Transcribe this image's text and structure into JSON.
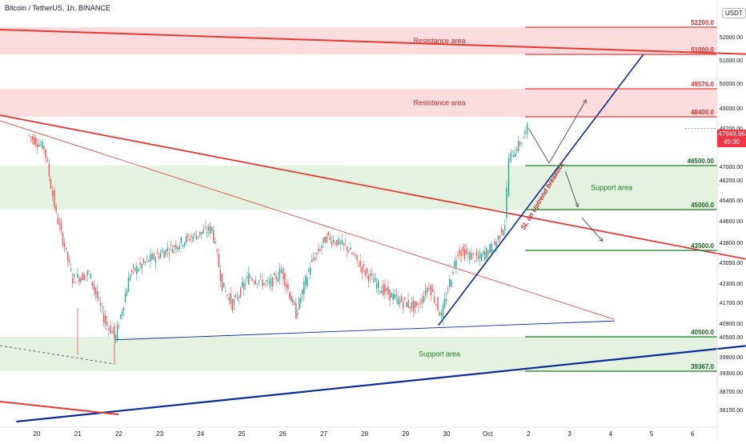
{
  "header": {
    "title": "Bitcoin / TetherUS, 1h, BINANCE"
  },
  "currency_badge": "USDT",
  "last_price": {
    "value": "47949.96",
    "countdown": "45:30",
    "color": "#f23645"
  },
  "colors": {
    "resistance": "#e53935",
    "resistance_fill": "#fcdcdc",
    "support": "#1b7a24",
    "support_fill": "#e3f3e0",
    "trend_blue": "#0d2a9c",
    "candle_up": "#26a69a",
    "candle_down": "#ef5350",
    "text_axis": "#131722"
  },
  "zones": [
    {
      "label": "Resistance area",
      "top": 52200,
      "bottom": 51000,
      "type": "resistance"
    },
    {
      "label": "Resistance area",
      "top": 49576,
      "bottom": 48400,
      "type": "resistance"
    },
    {
      "label": "Support area",
      "top": 46500,
      "bottom": 45000,
      "type": "support"
    },
    {
      "label": "Support area",
      "top": 40500,
      "bottom": 39367,
      "type": "support"
    }
  ],
  "levels": [
    {
      "value": 52200,
      "label": "52200.0",
      "type": "resistance"
    },
    {
      "value": 51000,
      "label": "51000.0",
      "type": "resistance"
    },
    {
      "value": 49576,
      "label": "49576.0",
      "type": "resistance"
    },
    {
      "value": 48400,
      "label": "48400.0",
      "type": "resistance"
    },
    {
      "value": 46500,
      "label": "46500.00",
      "type": "support"
    },
    {
      "value": 45000,
      "label": "45000.0",
      "type": "support"
    },
    {
      "value": 43500,
      "label": "43500.0",
      "type": "support"
    },
    {
      "value": 40500,
      "label": "40500.0",
      "type": "support"
    },
    {
      "value": 39367,
      "label": "39367.0",
      "type": "support"
    }
  ],
  "annotation": {
    "text": "SL on Uptrend breakout"
  },
  "chart_data": {
    "type": "candlestick",
    "title": "Bitcoin / TetherUS, 1h, BINANCE",
    "y_axis_ticks": [
      "52000.00",
      "51000.00",
      "50000.00",
      "49000.00",
      "48200.00",
      "47000.00",
      "46200.00",
      "45400.00",
      "44600.00",
      "43800.00",
      "43050.00",
      "42300.00",
      "41700.00",
      "40900.00",
      "40500.00",
      "39900.00",
      "39300.00",
      "38700.00",
      "38150.00"
    ],
    "x_axis_ticks": [
      "20",
      "21",
      "22",
      "23",
      "24",
      "25",
      "26",
      "27",
      "28",
      "29",
      "30",
      "Oct",
      "2",
      "3",
      "4",
      "5",
      "6"
    ],
    "price_path": [
      {
        "day": 19.8,
        "price": 47700
      },
      {
        "day": 20.2,
        "price": 47200
      },
      {
        "day": 20.5,
        "price": 44800
      },
      {
        "day": 20.9,
        "price": 42500
      },
      {
        "day": 21.3,
        "price": 42700
      },
      {
        "day": 21.7,
        "price": 41000
      },
      {
        "day": 21.95,
        "price": 40500
      },
      {
        "day": 22.3,
        "price": 42700
      },
      {
        "day": 22.8,
        "price": 43200
      },
      {
        "day": 23.3,
        "price": 43600
      },
      {
        "day": 23.8,
        "price": 44000
      },
      {
        "day": 24.3,
        "price": 44300
      },
      {
        "day": 24.55,
        "price": 42300
      },
      {
        "day": 24.8,
        "price": 41600
      },
      {
        "day": 25.2,
        "price": 42600
      },
      {
        "day": 25.7,
        "price": 42300
      },
      {
        "day": 26.0,
        "price": 42800
      },
      {
        "day": 26.35,
        "price": 41300
      },
      {
        "day": 26.7,
        "price": 43000
      },
      {
        "day": 27.1,
        "price": 44000
      },
      {
        "day": 27.6,
        "price": 43600
      },
      {
        "day": 28.0,
        "price": 42800
      },
      {
        "day": 28.4,
        "price": 42200
      },
      {
        "day": 28.8,
        "price": 41800
      },
      {
        "day": 29.3,
        "price": 41500
      },
      {
        "day": 29.6,
        "price": 42300
      },
      {
        "day": 29.9,
        "price": 41200
      },
      {
        "day": 30.1,
        "price": 42400
      },
      {
        "day": 30.3,
        "price": 43500
      },
      {
        "day": 30.8,
        "price": 43200
      },
      {
        "day": 31.2,
        "price": 43700
      },
      {
        "day": 31.45,
        "price": 44500
      },
      {
        "day": 31.55,
        "price": 46800
      },
      {
        "day": 31.7,
        "price": 47100
      },
      {
        "day": 31.9,
        "price": 47600
      },
      {
        "day": 32.0,
        "price": 47950
      }
    ],
    "trendlines": [
      {
        "name": "upper-resistance-trend",
        "from": {
          "day": 19.0,
          "price": 52100
        },
        "to": {
          "day": 37.5,
          "price": 51000
        }
      },
      {
        "name": "descending-trend",
        "from": {
          "day": 19.0,
          "price": 48500
        },
        "to": {
          "day": 37.3,
          "price": 43200
        }
      },
      {
        "name": "descending-trend-thin",
        "from": {
          "day": 19.0,
          "price": 48300
        },
        "to": {
          "day": 34.1,
          "price": 41100
        }
      },
      {
        "name": "triangle-base",
        "from": {
          "day": 21.9,
          "price": 40400
        },
        "to": {
          "day": 34.1,
          "price": 41050
        }
      },
      {
        "name": "uptrend-line",
        "from": {
          "day": 29.8,
          "price": 40900
        },
        "to": {
          "day": 34.8,
          "price": 51000
        }
      },
      {
        "name": "long-term-support",
        "from": {
          "day": 19.5,
          "price": 37700
        },
        "to": {
          "day": 37.3,
          "price": 40200
        }
      }
    ],
    "projections": [
      {
        "from": {
          "day": 32.0,
          "price": 47950
        },
        "to": {
          "day": 32.5,
          "price": 46600
        }
      },
      {
        "from": {
          "day": 32.5,
          "price": 46600
        },
        "to": {
          "day": 33.4,
          "price": 49100
        }
      },
      {
        "from": {
          "day": 32.9,
          "price": 46300
        },
        "to": {
          "day": 33.2,
          "price": 45100
        }
      },
      {
        "from": {
          "day": 33.3,
          "price": 44700
        },
        "to": {
          "day": 33.8,
          "price": 43850
        }
      }
    ],
    "grid": false,
    "legend": "none"
  }
}
